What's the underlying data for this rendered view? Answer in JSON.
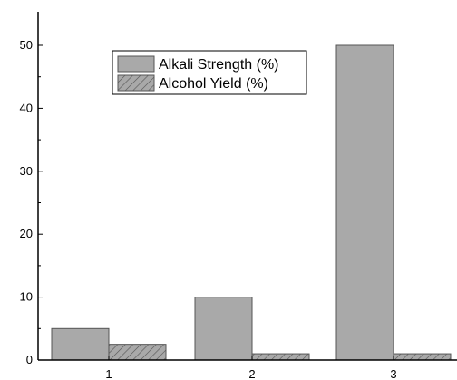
{
  "chart_data": {
    "type": "bar",
    "title": "",
    "xlabel": "",
    "ylabel": "",
    "categories": [
      "1",
      "2",
      "3"
    ],
    "series": [
      {
        "name": "Alkali Strength (%)",
        "values": [
          5,
          10,
          50
        ],
        "color": "#a9a9a9",
        "pattern": "solid"
      },
      {
        "name": "Alcohol Yield (%)",
        "values": [
          2.5,
          1,
          1
        ],
        "color": "#a9a9a9",
        "pattern": "hatched"
      }
    ],
    "ylim": [
      0,
      55
    ],
    "yticks": [
      0,
      10,
      20,
      30,
      40,
      50
    ],
    "grid": false,
    "legend_position": "top-center"
  }
}
